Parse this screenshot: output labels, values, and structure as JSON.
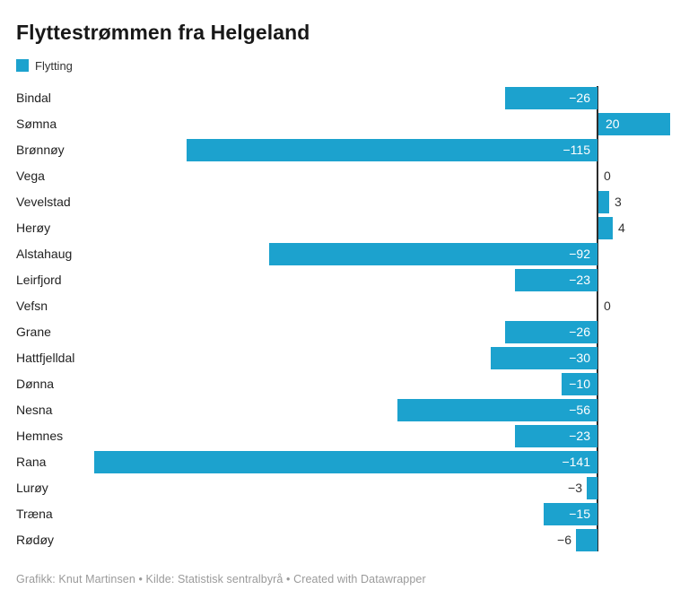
{
  "chart_data": {
    "type": "bar",
    "orientation": "horizontal",
    "title": "Flyttestrømmen fra Helgeland",
    "legend_entries": [
      {
        "label": "Flytting",
        "color": "#1CA2CE"
      }
    ],
    "categories": [
      "Bindal",
      "Sømna",
      "Brønnøy",
      "Vega",
      "Vevelstad",
      "Herøy",
      "Alstahaug",
      "Leirfjord",
      "Vefsn",
      "Grane",
      "Hattfjelldal",
      "Dønna",
      "Nesna",
      "Hemnes",
      "Rana",
      "Lurøy",
      "Træna",
      "Rødøy"
    ],
    "series": [
      {
        "name": "Flytting",
        "values": [
          -26,
          20,
          -115,
          0,
          3,
          4,
          -92,
          -23,
          0,
          -26,
          -30,
          -10,
          -56,
          -23,
          -141,
          -3,
          -15,
          -6
        ]
      }
    ],
    "value_labels": [
      "−26",
      "20",
      "−115",
      "0",
      "3",
      "4",
      "−92",
      "−23",
      "0",
      "−26",
      "−30",
      "−10",
      "−56",
      "−23",
      "−141",
      "−3",
      "−15",
      "−6"
    ],
    "xlim": [
      -150,
      25
    ],
    "grid": false,
    "legend_position": "top-left",
    "bar_color": "#1CA2CE",
    "axis_color": "#2b2b2b",
    "footer": "Grafikk: Knut Martinsen • Kilde: Statistisk sentralbyrå • Created with Datawrapper"
  }
}
